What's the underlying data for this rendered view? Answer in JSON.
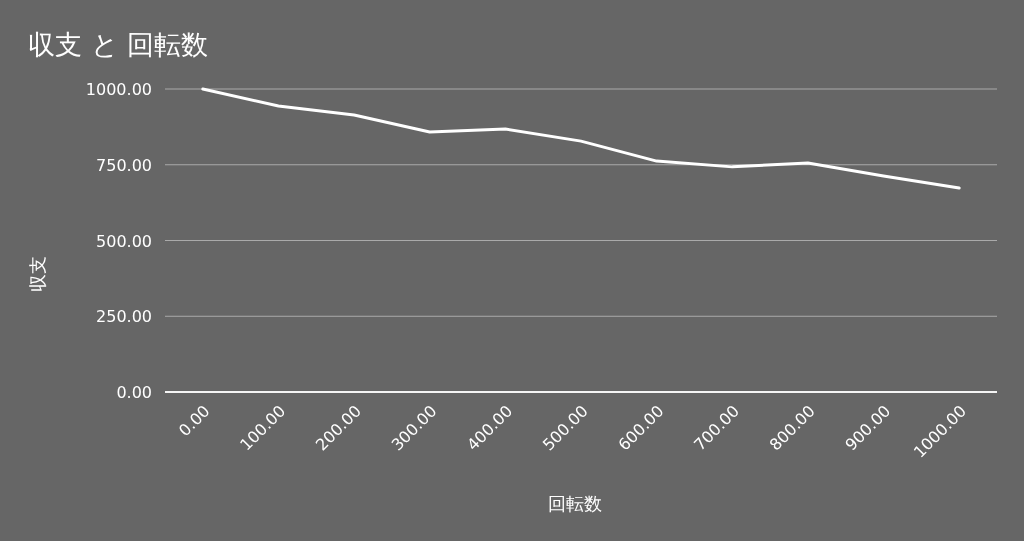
{
  "chart_data": {
    "type": "line",
    "title": "収支 と 回転数",
    "xlabel": "回転数",
    "ylabel": "収支",
    "x": [
      0,
      100,
      200,
      300,
      400,
      500,
      600,
      700,
      800,
      900,
      1000
    ],
    "series": [
      {
        "color": "#ffffff",
        "values": [
          1000,
          944,
          914,
          858,
          868,
          828,
          762,
          743,
          756,
          713,
          673
        ]
      }
    ],
    "xlim": [
      -50,
      1050
    ],
    "xticks": [
      {
        "value": 0,
        "label": "0.00"
      },
      {
        "value": 100,
        "label": "100.00"
      },
      {
        "value": 200,
        "label": "200.00"
      },
      {
        "value": 300,
        "label": "300.00"
      },
      {
        "value": 400,
        "label": "400.00"
      },
      {
        "value": 500,
        "label": "500.00"
      },
      {
        "value": 600,
        "label": "600.00"
      },
      {
        "value": 700,
        "label": "700.00"
      },
      {
        "value": 800,
        "label": "800.00"
      },
      {
        "value": 900,
        "label": "900.00"
      },
      {
        "value": 1000,
        "label": "1000.00"
      }
    ],
    "ylim": [
      0,
      1000
    ],
    "yticks": [
      {
        "value": 0,
        "label": "0.00"
      },
      {
        "value": 250,
        "label": "250.00"
      },
      {
        "value": 500,
        "label": "500.00"
      },
      {
        "value": 750,
        "label": "750.00"
      },
      {
        "value": 1000,
        "label": "1000.00"
      }
    ],
    "grid": "y",
    "marker": "none",
    "line_style": "solid"
  }
}
